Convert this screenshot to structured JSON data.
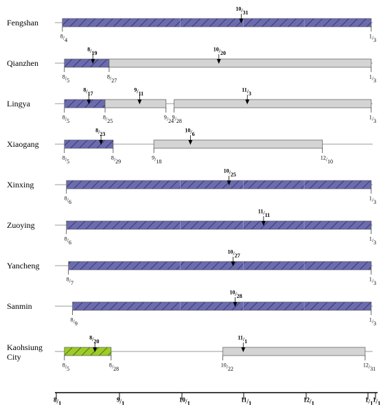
{
  "colors": {
    "hatch_blue": "#6b6bb0",
    "hatch_green": "#9ccc28",
    "gray_bar": "#d4d4d4",
    "bar_stroke": "#555555",
    "baseline": "#777777"
  },
  "chart_data": {
    "type": "gantt",
    "title": "",
    "xlabel": "",
    "ylabel": "",
    "x_axis_ticks": [
      {
        "date": "8/1",
        "sup": "8",
        "sub": "1"
      },
      {
        "date": "9/1",
        "sup": "9",
        "sub": "1"
      },
      {
        "date": "10/1",
        "sup": "10",
        "sub": "1"
      },
      {
        "date": "11/1",
        "sup": "11",
        "sub": "1"
      },
      {
        "date": "12/1",
        "sup": "12",
        "sub": "1"
      },
      {
        "date": "1/1",
        "sup": "1",
        "sub": "1"
      },
      {
        "date": "1/1",
        "sup": "1",
        "sub": "1/"
      }
    ],
    "rows": [
      {
        "name": "Fengshan",
        "bars": [
          {
            "style": "hatch-blue",
            "start": "8/4",
            "end": "1/3",
            "start_label": {
              "sup": "8",
              "sub": "4"
            },
            "end_label": {
              "sup": "1",
              "sub": "3"
            }
          }
        ],
        "peaks": [
          {
            "date": "10/31",
            "sup": "10",
            "sub": "31"
          }
        ]
      },
      {
        "name": "Qianzhen",
        "bars": [
          {
            "style": "hatch-blue",
            "start": "8/5",
            "end": "8/27",
            "start_label": {
              "sup": "8",
              "sub": "5"
            },
            "end_label": {
              "sup": "8",
              "sub": "27"
            }
          },
          {
            "style": "gray",
            "start": "8/27",
            "end": "1/3",
            "start_label": null,
            "end_label": {
              "sup": "1",
              "sub": "3"
            }
          }
        ],
        "peaks": [
          {
            "date": "8/19",
            "sup": "8",
            "sub": "19"
          },
          {
            "date": "10/20",
            "sup": "10",
            "sub": "20"
          }
        ]
      },
      {
        "name": "Lingya",
        "bars": [
          {
            "style": "hatch-blue",
            "start": "8/5",
            "end": "8/25",
            "start_label": {
              "sup": "8",
              "sub": "5"
            },
            "end_label": {
              "sup": "8",
              "sub": "25"
            }
          },
          {
            "style": "gray",
            "start": "8/25",
            "end": "9/24",
            "start_label": null,
            "end_label": {
              "sup": "9",
              "sub": "24"
            }
          },
          {
            "style": "gray",
            "start": "9/28",
            "end": "1/3",
            "start_label": {
              "sup": "9",
              "sub": "28"
            },
            "end_label": {
              "sup": "1",
              "sub": "3"
            }
          }
        ],
        "peaks": [
          {
            "date": "8/17",
            "sup": "8",
            "sub": "17"
          },
          {
            "date": "9/11",
            "sup": "9",
            "sub": "11"
          },
          {
            "date": "11/3",
            "sup": "11",
            "sub": "3"
          }
        ]
      },
      {
        "name": "Xiaogang",
        "bars": [
          {
            "style": "hatch-blue",
            "start": "8/5",
            "end": "8/29",
            "start_label": {
              "sup": "8",
              "sub": "5"
            },
            "end_label": {
              "sup": "8",
              "sub": "29"
            }
          },
          {
            "style": "gray",
            "start": "9/18",
            "end": "12/10",
            "start_label": {
              "sup": "9",
              "sub": "18"
            },
            "end_label": {
              "sup": "12",
              "sub": "10"
            }
          }
        ],
        "peaks": [
          {
            "date": "8/23",
            "sup": "8",
            "sub": "23"
          },
          {
            "date": "10/6",
            "sup": "10",
            "sub": "6"
          }
        ]
      },
      {
        "name": "Xinxing",
        "bars": [
          {
            "style": "hatch-blue",
            "start": "8/6",
            "end": "1/3",
            "start_label": {
              "sup": "8",
              "sub": "6"
            },
            "end_label": {
              "sup": "1",
              "sub": "3"
            }
          }
        ],
        "peaks": [
          {
            "date": "10/25",
            "sup": "10",
            "sub": "25"
          }
        ]
      },
      {
        "name": "Zuoying",
        "bars": [
          {
            "style": "hatch-blue",
            "start": "8/6",
            "end": "1/3",
            "start_label": {
              "sup": "8",
              "sub": "6"
            },
            "end_label": {
              "sup": "1",
              "sub": "3"
            }
          }
        ],
        "peaks": [
          {
            "date": "11/11",
            "sup": "11",
            "sub": "11"
          }
        ]
      },
      {
        "name": "Yancheng",
        "bars": [
          {
            "style": "hatch-blue",
            "start": "8/7",
            "end": "1/3",
            "start_label": {
              "sup": "8",
              "sub": "7"
            },
            "end_label": {
              "sup": "1",
              "sub": "3"
            }
          }
        ],
        "peaks": [
          {
            "date": "10/27",
            "sup": "10",
            "sub": "27"
          }
        ]
      },
      {
        "name": "Sanmin",
        "bars": [
          {
            "style": "hatch-blue",
            "start": "8/9",
            "end": "1/3",
            "start_label": {
              "sup": "8",
              "sub": "9"
            },
            "end_label": {
              "sup": "1",
              "sub": "3"
            }
          }
        ],
        "peaks": [
          {
            "date": "10/28",
            "sup": "10",
            "sub": "28"
          }
        ]
      },
      {
        "name": "Kaohsiung City",
        "name_lines": [
          "Kaohsiung",
          "City"
        ],
        "bars": [
          {
            "style": "hatch-green",
            "start": "8/5",
            "end": "8/28",
            "start_label": {
              "sup": "8",
              "sub": "5"
            },
            "end_label": {
              "sup": "8",
              "sub": "28"
            }
          },
          {
            "style": "gray",
            "start": "10/22",
            "end": "12/31",
            "start_label": {
              "sup": "10",
              "sub": "22"
            },
            "end_label": {
              "sup": "12",
              "sub": "31"
            }
          }
        ],
        "peaks": [
          {
            "date": "8/20",
            "sup": "8",
            "sub": "20"
          },
          {
            "date": "11/1",
            "sup": "11",
            "sub": "1"
          }
        ]
      }
    ]
  }
}
